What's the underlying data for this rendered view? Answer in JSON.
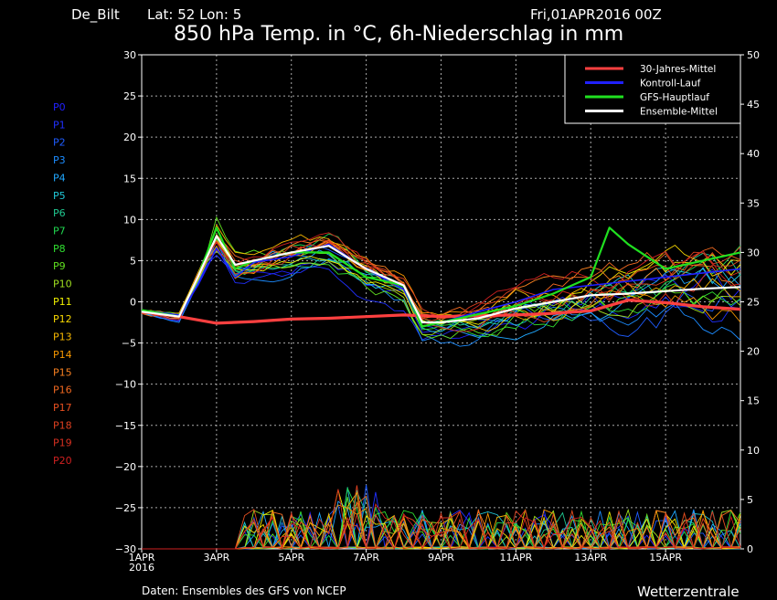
{
  "header": {
    "station": "De_Bilt",
    "location": "Lat: 52  Lon: 5",
    "run": "Fri,01APR2016 00Z",
    "title": "850 hPa Temp. in °C, 6h-Niederschlag in mm"
  },
  "footer": {
    "source": "Daten: Ensembles des GFS von NCEP",
    "brand": "Wetterzentrale"
  },
  "members": [
    {
      "label": "P0",
      "color": "#2020ff"
    },
    {
      "label": "P1",
      "color": "#2030ff"
    },
    {
      "label": "P2",
      "color": "#1e5cff"
    },
    {
      "label": "P3",
      "color": "#1c8cff"
    },
    {
      "label": "P4",
      "color": "#20a8ff"
    },
    {
      "label": "P5",
      "color": "#20c8d8"
    },
    {
      "label": "P6",
      "color": "#20c890"
    },
    {
      "label": "P7",
      "color": "#20d850"
    },
    {
      "label": "P8",
      "color": "#30e030"
    },
    {
      "label": "P9",
      "color": "#60e020"
    },
    {
      "label": "P10",
      "color": "#a0e020"
    },
    {
      "label": "P11",
      "color": "#f0f000"
    },
    {
      "label": "P12",
      "color": "#f8d800"
    },
    {
      "label": "P13",
      "color": "#f8b800"
    },
    {
      "label": "P14",
      "color": "#f89800"
    },
    {
      "label": "P15",
      "color": "#f88020"
    },
    {
      "label": "P16",
      "color": "#f06820"
    },
    {
      "label": "P17",
      "color": "#e85020"
    },
    {
      "label": "P18",
      "color": "#e04020"
    },
    {
      "label": "P19",
      "color": "#d83020"
    },
    {
      "label": "P20",
      "color": "#d02020"
    }
  ],
  "chart_data": {
    "type": "line",
    "x_tick_labels": [
      "1APR\n2016",
      "3APR",
      "5APR",
      "7APR",
      "9APR",
      "11APR",
      "13APR",
      "15APR"
    ],
    "xlim": [
      0,
      16
    ],
    "y_left_ticks": [
      30,
      25,
      20,
      15,
      10,
      5,
      0,
      -5,
      -10,
      -15,
      -20,
      -25,
      -30
    ],
    "y_left_range": [
      -30,
      30
    ],
    "y_right_ticks": [
      50,
      45,
      40,
      35,
      30,
      25,
      20,
      15,
      10,
      5,
      0
    ],
    "y_right_range": [
      0,
      50
    ],
    "grid": true,
    "legend_position": "top-right",
    "legend": [
      {
        "name": "30-Jahres-Mittel",
        "color": "#ff4040"
      },
      {
        "name": "Kontroll-Lauf",
        "color": "#2020ff"
      },
      {
        "name": "GFS-Hauptlauf",
        "color": "#20e020"
      },
      {
        "name": "Ensemble-Mittel",
        "color": "#ffffff"
      }
    ],
    "series": [
      {
        "name": "30-Jahres-Mittel",
        "color": "#ff4040",
        "x": [
          0,
          1,
          2,
          3,
          4,
          5,
          6,
          7,
          8,
          9,
          10,
          11,
          12,
          13,
          14,
          15,
          16
        ],
        "y": [
          -1.2,
          -1.8,
          -2.6,
          -2.4,
          -2.1,
          -2.0,
          -1.8,
          -1.6,
          -1.8,
          -1.7,
          -1.6,
          -1.4,
          -1.1,
          0.2,
          -0.1,
          -0.6,
          -0.9
        ]
      },
      {
        "name": "Kontroll-Lauf",
        "color": "#2020ff",
        "x": [
          0,
          1,
          1.5,
          2,
          2.5,
          3,
          4,
          5,
          6,
          7,
          7.5,
          8,
          9,
          10,
          11,
          12,
          13,
          14,
          15,
          16
        ],
        "y": [
          -1,
          -1.6,
          2,
          6.5,
          3,
          4.8,
          5.5,
          7,
          4,
          1.5,
          -3,
          -2.5,
          -1.2,
          0,
          1.5,
          2,
          2.5,
          3,
          3.5,
          4
        ]
      },
      {
        "name": "GFS-Hauptlauf",
        "color": "#20e020",
        "x": [
          0,
          1,
          1.5,
          2,
          2.5,
          3,
          4,
          5,
          6,
          7,
          7.5,
          8,
          9,
          10,
          11,
          12,
          12.5,
          13,
          14,
          15,
          16
        ],
        "y": [
          -1,
          -1.8,
          3,
          9,
          4,
          5,
          6,
          6,
          3,
          2,
          -3,
          -2.5,
          -1.5,
          -0.5,
          1,
          3,
          9,
          7,
          4,
          5,
          6
        ]
      },
      {
        "name": "Ensemble-Mittel",
        "color": "#ffffff",
        "x": [
          0,
          1,
          1.5,
          2,
          2.5,
          3,
          4,
          5,
          6,
          7,
          7.5,
          8,
          9,
          10,
          11,
          12,
          13,
          14,
          15,
          16
        ],
        "y": [
          -1.2,
          -1.8,
          3,
          8,
          4.5,
          5,
          6,
          6.8,
          4,
          2,
          -2.5,
          -2.5,
          -2,
          -0.8,
          0,
          0.8,
          1,
          1.3,
          1.6,
          1.8
        ]
      }
    ]
  }
}
